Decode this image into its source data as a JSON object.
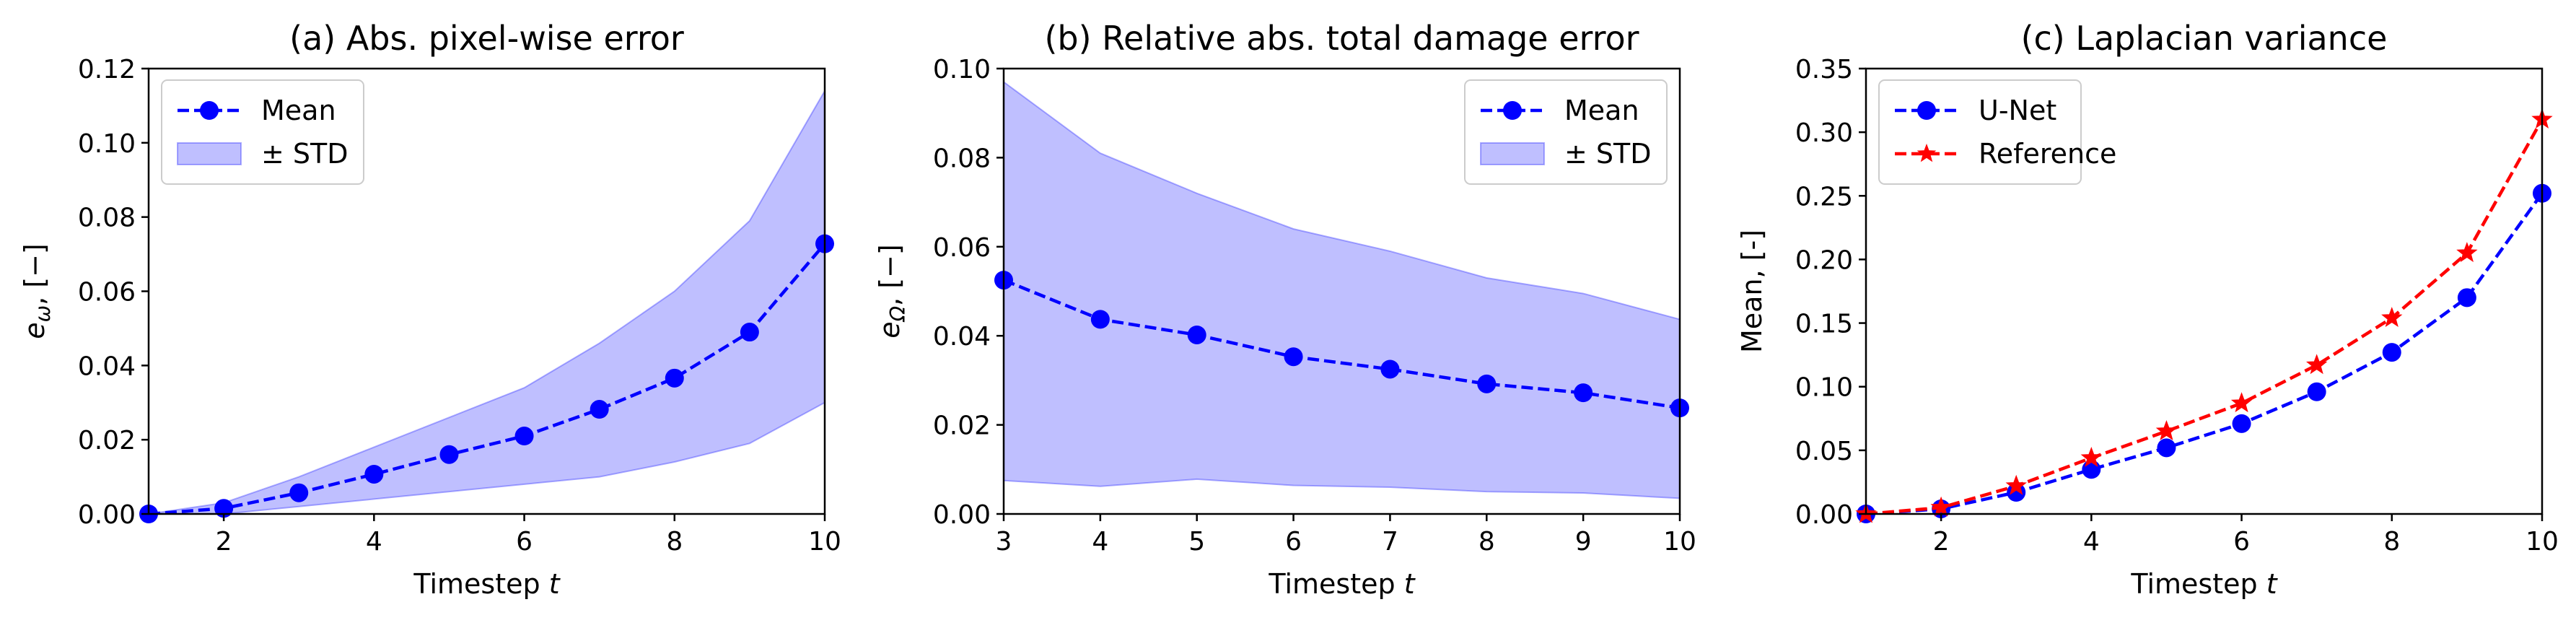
{
  "chart_data": [
    {
      "type": "line",
      "title": "(a) Abs. pixel-wise error",
      "xlabel": "Timestep t",
      "ylabel": "eω, [−]",
      "xlim": [
        1,
        10
      ],
      "ylim": [
        0,
        0.12
      ],
      "xticks": [
        2,
        4,
        6,
        8,
        10
      ],
      "yticks": [
        0.0,
        0.02,
        0.04,
        0.06,
        0.08,
        0.1,
        0.12
      ],
      "ytick_labels": [
        "0.00",
        "0.02",
        "0.04",
        "0.06",
        "0.08",
        "0.10",
        "0.12"
      ],
      "legend_position": "upper-left",
      "x": [
        1,
        2,
        3,
        4,
        5,
        6,
        7,
        8,
        9,
        10
      ],
      "series": [
        {
          "name": "Mean",
          "kind": "line",
          "marker": "circle",
          "color": "#0000ff",
          "values": [
            0.0,
            0.0015,
            0.0057,
            0.0107,
            0.016,
            0.021,
            0.0282,
            0.0366,
            0.049,
            0.0728
          ]
        }
      ],
      "bands": [
        {
          "name": "± STD",
          "color": "#0000ff",
          "lower": [
            0.0,
            0.0,
            0.002,
            0.004,
            0.006,
            0.008,
            0.01,
            0.014,
            0.019,
            0.03
          ],
          "upper": [
            0.0,
            0.003,
            0.01,
            0.018,
            0.026,
            0.034,
            0.046,
            0.06,
            0.079,
            0.114
          ]
        }
      ]
    },
    {
      "type": "line",
      "title": "(b) Relative abs. total damage error",
      "xlabel": "Timestep t",
      "ylabel": "eΩ, [−]",
      "xlim": [
        3,
        10
      ],
      "ylim": [
        0,
        0.1
      ],
      "xticks": [
        3,
        4,
        5,
        6,
        7,
        8,
        9,
        10
      ],
      "yticks": [
        0.0,
        0.02,
        0.04,
        0.06,
        0.08,
        0.1
      ],
      "ytick_labels": [
        "0.00",
        "0.02",
        "0.04",
        "0.06",
        "0.08",
        "0.10"
      ],
      "legend_position": "upper-right",
      "x": [
        3,
        4,
        5,
        6,
        7,
        8,
        9,
        10
      ],
      "series": [
        {
          "name": "Mean",
          "kind": "line",
          "marker": "circle",
          "color": "#0000ff",
          "values": [
            0.0525,
            0.0437,
            0.0402,
            0.0353,
            0.0325,
            0.0292,
            0.0272,
            0.0238
          ]
        }
      ],
      "bands": [
        {
          "name": "± STD",
          "color": "#0000ff",
          "lower": [
            0.0075,
            0.0062,
            0.0078,
            0.0064,
            0.006,
            0.005,
            0.0047,
            0.0035
          ],
          "upper": [
            0.097,
            0.081,
            0.072,
            0.064,
            0.059,
            0.053,
            0.0495,
            0.0437
          ]
        }
      ]
    },
    {
      "type": "line",
      "title": "(c) Laplacian variance",
      "xlabel": "Timestep t",
      "ylabel": "Mean, [-]",
      "xlim": [
        1,
        10
      ],
      "ylim": [
        0,
        0.35
      ],
      "xticks": [
        2,
        4,
        6,
        8,
        10
      ],
      "yticks": [
        0.0,
        0.05,
        0.1,
        0.15,
        0.2,
        0.25,
        0.3,
        0.35
      ],
      "ytick_labels": [
        "0.00",
        "0.05",
        "0.10",
        "0.15",
        "0.20",
        "0.25",
        "0.30",
        "0.35"
      ],
      "legend_position": "upper-left",
      "x": [
        1,
        2,
        3,
        4,
        5,
        6,
        7,
        8,
        9,
        10
      ],
      "series": [
        {
          "name": "U-Net",
          "kind": "line",
          "marker": "circle",
          "color": "#0000ff",
          "values": [
            0.0,
            0.004,
            0.017,
            0.035,
            0.052,
            0.071,
            0.096,
            0.127,
            0.17,
            0.252
          ]
        },
        {
          "name": "Reference",
          "kind": "line",
          "marker": "star",
          "color": "#ff0000",
          "values": [
            0.0,
            0.005,
            0.022,
            0.044,
            0.065,
            0.087,
            0.117,
            0.154,
            0.205,
            0.31
          ]
        }
      ],
      "bands": []
    }
  ]
}
